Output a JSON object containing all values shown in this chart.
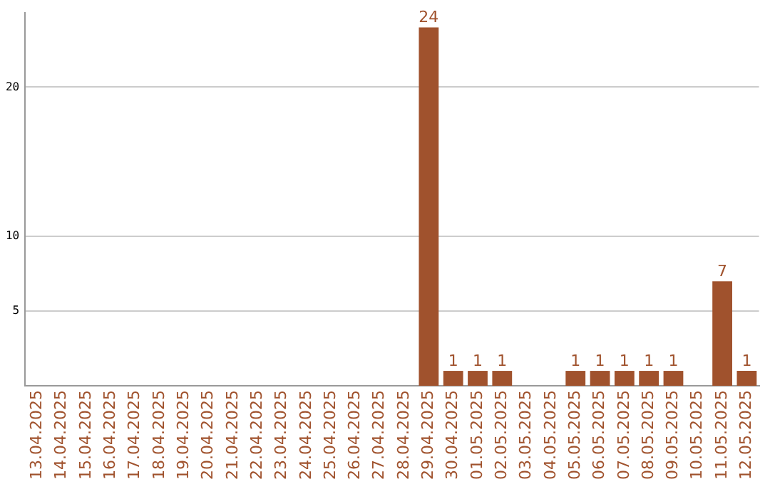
{
  "chart_data": {
    "type": "bar",
    "categories": [
      "13.04.2025",
      "14.04.2025",
      "15.04.2025",
      "16.04.2025",
      "17.04.2025",
      "18.04.2025",
      "19.04.2025",
      "20.04.2025",
      "21.04.2025",
      "22.04.2025",
      "23.04.2025",
      "24.04.2025",
      "25.04.2025",
      "26.04.2025",
      "27.04.2025",
      "28.04.2025",
      "29.04.2025",
      "30.04.2025",
      "01.05.2025",
      "02.05.2025",
      "03.05.2025",
      "04.05.2025",
      "05.05.2025",
      "06.05.2025",
      "07.05.2025",
      "08.05.2025",
      "09.05.2025",
      "10.05.2025",
      "11.05.2025",
      "12.05.2025"
    ],
    "values": [
      0,
      0,
      0,
      0,
      0,
      0,
      0,
      0,
      0,
      0,
      0,
      0,
      0,
      0,
      0,
      0,
      24,
      1,
      1,
      1,
      0,
      0,
      1,
      1,
      1,
      1,
      1,
      0,
      7,
      1
    ],
    "value_labels": [
      null,
      null,
      null,
      null,
      null,
      null,
      null,
      null,
      null,
      null,
      null,
      null,
      null,
      null,
      null,
      null,
      "24",
      "1",
      "1",
      "1",
      null,
      null,
      "1",
      "1",
      "1",
      "1",
      "1",
      null,
      "7",
      "1"
    ],
    "color": "#a0522d",
    "ylim": [
      0,
      25
    ],
    "yticks": [
      5,
      10,
      20
    ],
    "grid": "y",
    "legend": false
  }
}
